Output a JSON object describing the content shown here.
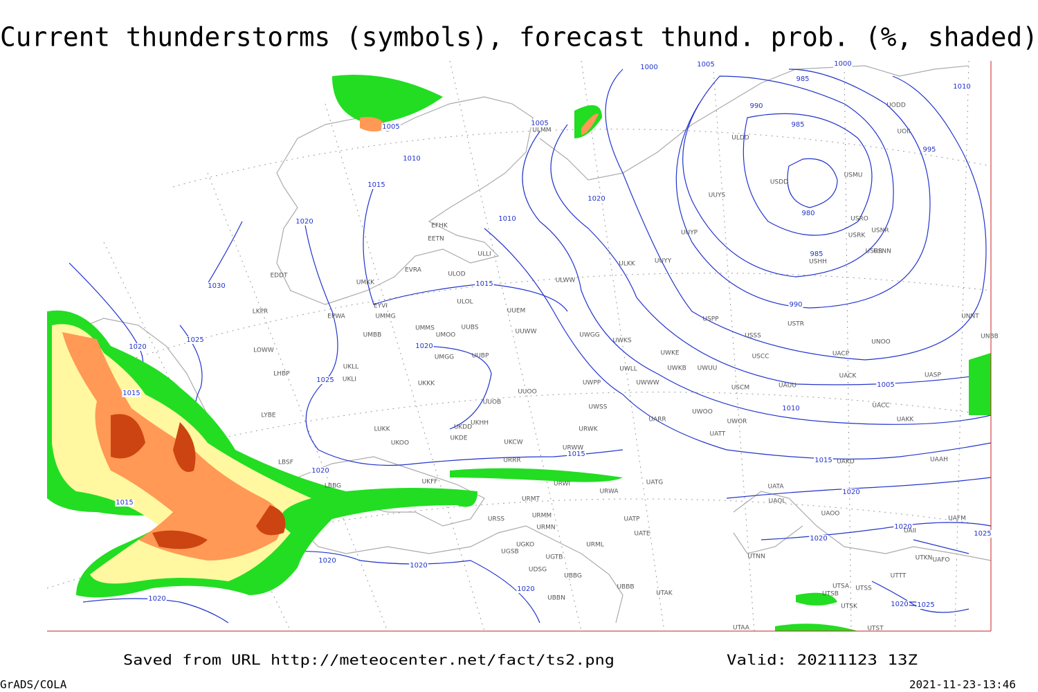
{
  "header": {
    "title": "Current thunderstorms (symbols), forecast thund. prob. (%, shaded)"
  },
  "isobar_labels": [
    "1000",
    "1005",
    "1000",
    "985",
    "1010",
    "990",
    "985",
    "995",
    "980",
    "985",
    "990",
    "1005",
    "1005",
    "1010",
    "1015",
    "1020",
    "1020",
    "1010",
    "1015",
    "1030",
    "1020",
    "1025",
    "1020",
    "1025",
    "1015",
    "1005",
    "1010",
    "1015",
    "1015",
    "1020",
    "1015",
    "1020",
    "1020",
    "1020",
    "1025",
    "1020",
    "1020",
    "1020",
    "1020",
    "1020",
    "1025"
  ],
  "stations": [
    "UUEM",
    "UUWW",
    "ULOL",
    "ULOD",
    "EVRA",
    "EETN",
    "EFHK",
    "ULLI",
    "UMKK",
    "EYVI",
    "UMMG",
    "EPWA",
    "UMBB",
    "UMMS",
    "UMOO",
    "UUBS",
    "UMGG",
    "UUBP",
    "UKLL",
    "UKLI",
    "UKKK",
    "UUOO",
    "UUOB",
    "UKHH",
    "UKDD",
    "UKDE",
    "UKCW",
    "LUKK",
    "UKOO",
    "LKPR",
    "LOWW",
    "LHBP",
    "LYBE",
    "EDDT",
    "LBSF",
    "LBBG",
    "UKFF",
    "URRR",
    "URWA",
    "URWI",
    "UATG",
    "URMT",
    "URMM",
    "URMN",
    "URSS",
    "UGKO",
    "UGSB",
    "UGTB",
    "UDSG",
    "UBBG",
    "UBBN",
    "UBBB",
    "UTAK",
    "URML",
    "UATP",
    "UATE",
    "UARR",
    "UWSS",
    "UWPP",
    "UWWW",
    "UWLL",
    "UWKE",
    "UWKS",
    "UWGG",
    "URWW",
    "URWK",
    "UWUU",
    "UWKB",
    "USCM",
    "UAUU",
    "UWOO",
    "UWOR",
    "UATT",
    "USPP",
    "USSS",
    "USCC",
    "USTR",
    "ULWW",
    "ULKK",
    "UUYY",
    "UUYP",
    "UUYS",
    "USDD",
    "ULDD",
    "USMU",
    "USRO",
    "USRK",
    "USNR",
    "USRR",
    "USNN",
    "USHH",
    "UODD",
    "UOII",
    "ULMM",
    "UNNT",
    "UNBB",
    "UNOO",
    "UACP",
    "UACK",
    "UASP",
    "UACC",
    "UAKK",
    "UAKD",
    "UAAH",
    "UATA",
    "UAOL",
    "UAOO",
    "UAFM",
    "UAII",
    "UTNN",
    "UTKN",
    "UAFO",
    "UTTT",
    "UTSA",
    "UTSS",
    "UTSB",
    "UTSK",
    "UTAA",
    "UTST"
  ],
  "footer": {
    "source": "Saved from URL http://meteocenter.net/fact/ts2.png",
    "valid": "Valid: 20211123 13Z",
    "software": "GrADS/COLA",
    "timestamp": "2021-11-23-13:46"
  }
}
